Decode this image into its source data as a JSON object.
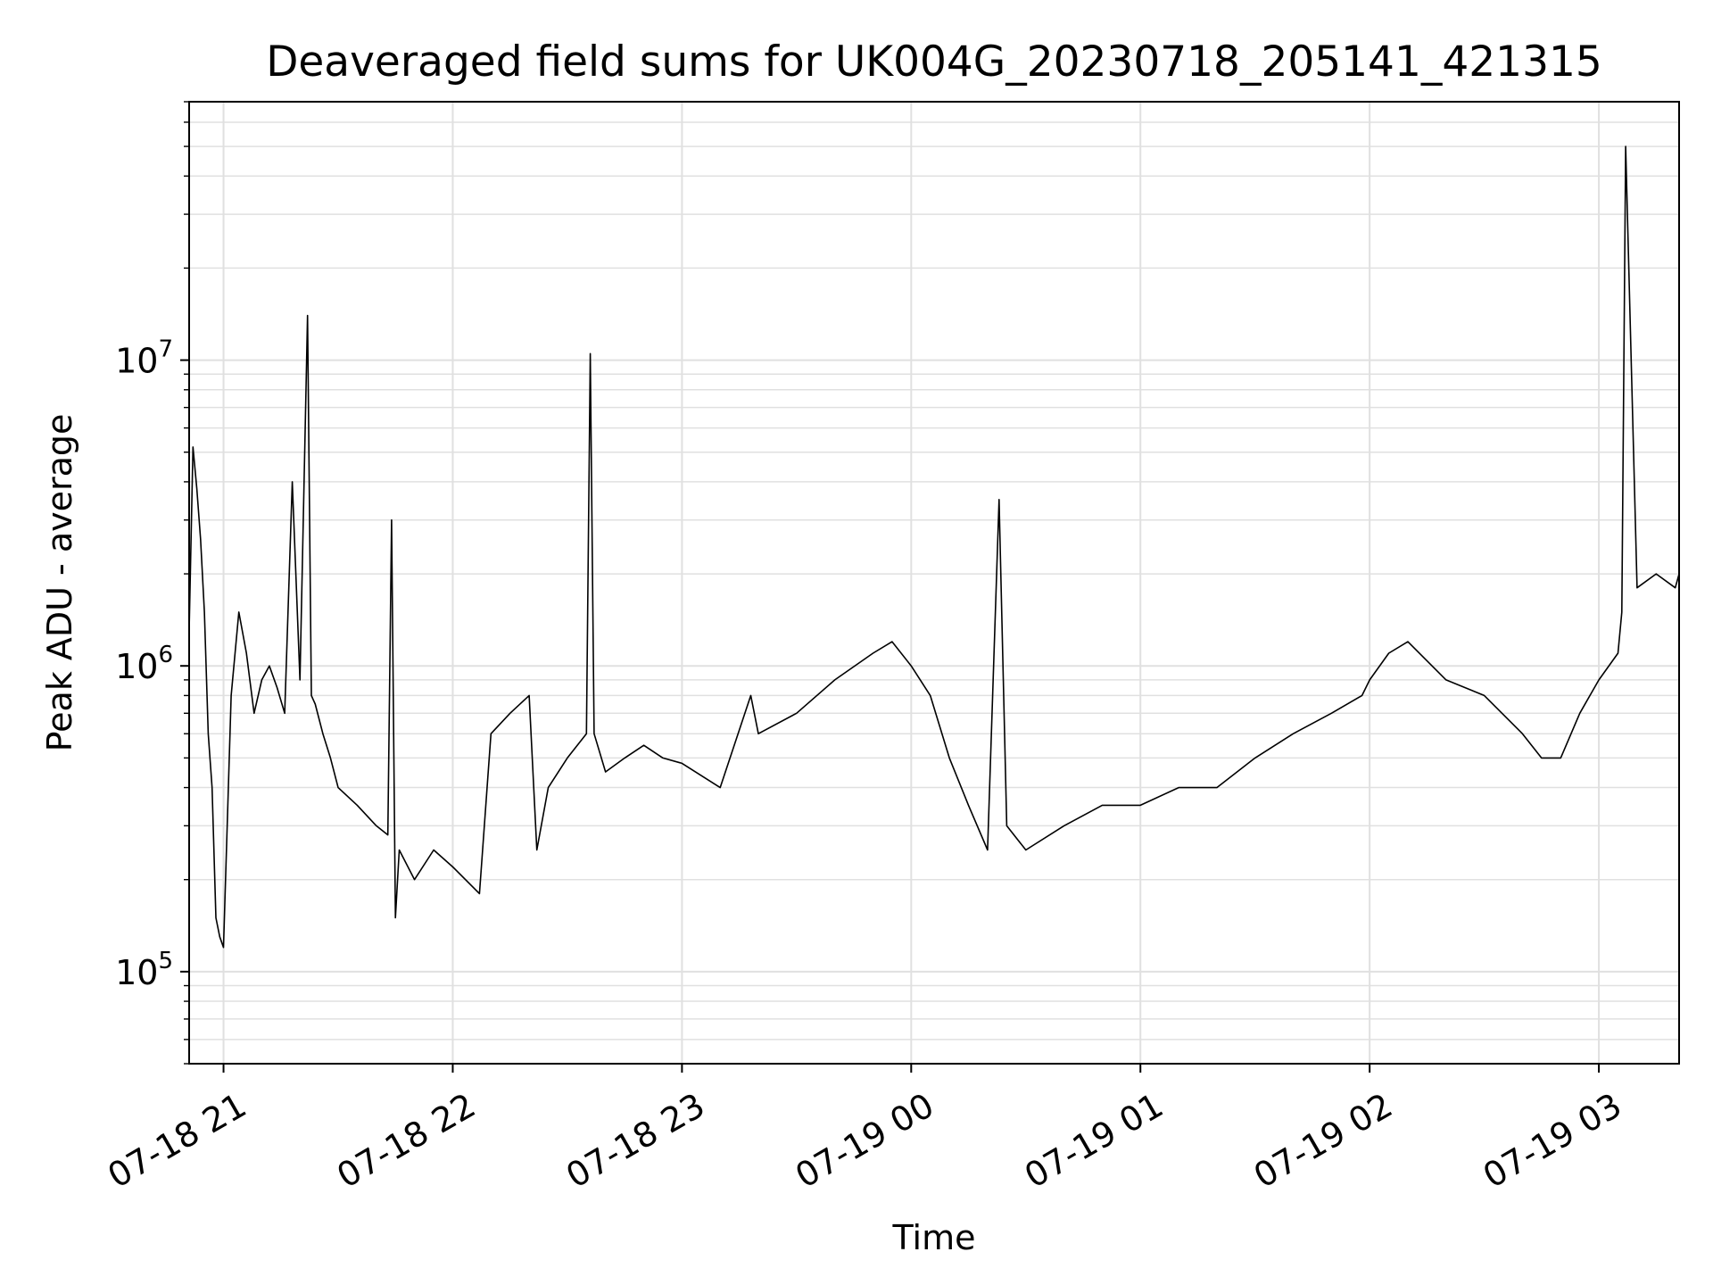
{
  "chart_data": {
    "type": "line",
    "title": "Deaveraged field sums for UK004G_20230718_205141_421315",
    "xlabel": "Time",
    "ylabel": "Peak ADU - average",
    "y_scale": "log",
    "grid": true,
    "x_range": [
      "07-18 20:51",
      "07-19 03:21"
    ],
    "ylim": [
      50000,
      70000000
    ],
    "x_ticks": [
      "07-18 21",
      "07-18 22",
      "07-18 23",
      "07-19 00",
      "07-19 01",
      "07-19 02",
      "07-19 03"
    ],
    "y_ticks": [
      {
        "base": "10",
        "exp": "5",
        "value": 100000
      },
      {
        "base": "10",
        "exp": "6",
        "value": 1000000
      },
      {
        "base": "10",
        "exp": "7",
        "value": 10000000
      }
    ],
    "series": [
      {
        "color": "#000000",
        "x": [
          "07-18 20:51",
          "07-18 20:52",
          "07-18 20:53",
          "07-18 20:54",
          "07-18 20:55",
          "07-18 20:56",
          "07-18 20:57",
          "07-18 20:58",
          "07-18 20:59",
          "07-18 21:00",
          "07-18 21:02",
          "07-18 21:04",
          "07-18 21:06",
          "07-18 21:08",
          "07-18 21:10",
          "07-18 21:12",
          "07-18 21:14",
          "07-18 21:16",
          "07-18 21:18",
          "07-18 21:20",
          "07-18 21:22",
          "07-18 21:23",
          "07-18 21:24",
          "07-18 21:26",
          "07-18 21:28",
          "07-18 21:30",
          "07-18 21:35",
          "07-18 21:40",
          "07-18 21:43",
          "07-18 21:44",
          "07-18 21:45",
          "07-18 21:46",
          "07-18 21:50",
          "07-18 21:55",
          "07-18 22:00",
          "07-18 22:07",
          "07-18 22:10",
          "07-18 22:15",
          "07-18 22:20",
          "07-18 22:22",
          "07-18 22:25",
          "07-18 22:30",
          "07-18 22:35",
          "07-18 22:36",
          "07-18 22:37",
          "07-18 22:40",
          "07-18 22:45",
          "07-18 22:50",
          "07-18 22:55",
          "07-18 23:00",
          "07-18 23:10",
          "07-18 23:18",
          "07-18 23:20",
          "07-18 23:30",
          "07-18 23:40",
          "07-18 23:50",
          "07-18 23:55",
          "07-19 00:00",
          "07-19 00:05",
          "07-19 00:10",
          "07-19 00:15",
          "07-19 00:20",
          "07-19 00:23",
          "07-19 00:25",
          "07-19 00:30",
          "07-19 00:40",
          "07-19 00:50",
          "07-19 01:00",
          "07-19 01:10",
          "07-19 01:20",
          "07-19 01:30",
          "07-19 01:40",
          "07-19 01:50",
          "07-19 01:58",
          "07-19 02:00",
          "07-19 02:05",
          "07-19 02:10",
          "07-19 02:20",
          "07-19 02:30",
          "07-19 02:40",
          "07-19 02:45",
          "07-19 02:50",
          "07-19 02:55",
          "07-19 03:00",
          "07-19 03:05",
          "07-19 03:06",
          "07-19 03:07",
          "07-19 03:10",
          "07-19 03:15",
          "07-19 03:20",
          "07-19 03:21"
        ],
        "y": [
          1300000,
          5200000,
          3800000,
          2600000,
          1500000,
          600000,
          400000,
          150000,
          130000,
          120000,
          800000,
          1500000,
          1100000,
          700000,
          900000,
          1000000,
          850000,
          700000,
          4000000,
          900000,
          14000000,
          800000,
          750000,
          600000,
          500000,
          400000,
          350000,
          300000,
          280000,
          3000000,
          150000,
          250000,
          200000,
          250000,
          220000,
          180000,
          600000,
          700000,
          800000,
          250000,
          400000,
          500000,
          600000,
          10500000,
          600000,
          450000,
          500000,
          550000,
          500000,
          480000,
          400000,
          800000,
          600000,
          700000,
          900000,
          1100000,
          1200000,
          1000000,
          800000,
          500000,
          350000,
          250000,
          3500000,
          300000,
          250000,
          300000,
          350000,
          350000,
          400000,
          400000,
          500000,
          600000,
          700000,
          800000,
          900000,
          1100000,
          1200000,
          900000,
          800000,
          600000,
          500000,
          500000,
          700000,
          900000,
          1100000,
          1500000,
          50000000,
          1800000,
          2000000,
          1800000,
          2000000
        ]
      }
    ]
  }
}
